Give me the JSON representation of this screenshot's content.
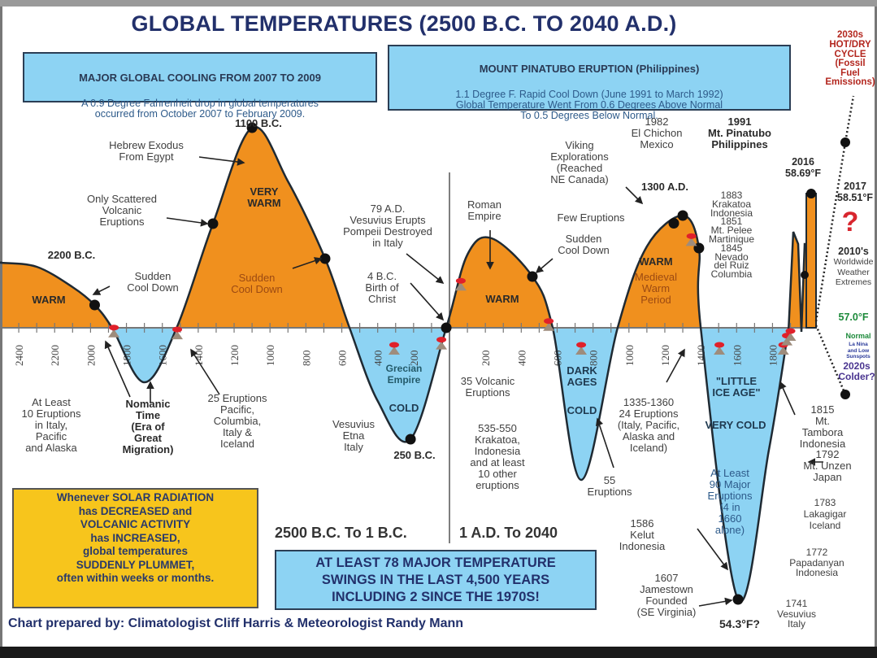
{
  "title": "GLOBAL TEMPERATURES (2500 B.C. TO 2040 A.D.)",
  "colors": {
    "warm": "#F0901E",
    "cold": "#8DD3F3",
    "title": "#22306B",
    "curve": "#1f2a33",
    "eruption": "#E0202A",
    "volcano": "#9E8C7C"
  },
  "cooling_box": {
    "heading": "MAJOR GLOBAL COOLING FROM 2007 TO 2009",
    "body": "A 0.9 Degree Fahrenheit drop in global temperatures\noccurred from October 2007 to February 2009."
  },
  "pinatubo_box": {
    "heading": "MOUNT PINATUBO ERUPTION (Philippines)",
    "body": "1.1 Degree F. Rapid Cool Down (June 1991 to March 1992)\nGlobal Temperature Went From 0.6 Degrees Above Normal\nTo 0.5 Degrees Below Normal."
  },
  "solar_box": "Whenever SOLAR RADIATION\nhas DECREASED and\nVOLCANIC ACTIVITY\nhas INCREASED,\nglobal temperatures\nSUDDENLY PLUMMET,\noften within weeks or months.",
  "swings_box": "AT LEAST 78 MAJOR TEMPERATURE\nSWINGS IN THE LAST 4,500 YEARS\nINCLUDING 2 SINCE THE 1970S!",
  "range_bc": "2500 B.C. To 1 B.C.",
  "range_ad": "1 A.D. To 2040",
  "footer": "Chart prepared by: Climatologist Cliff Harris & Meteorologist Randy Mann",
  "annotations": {
    "bc1100": "1100 B.C.",
    "exodus": "Hebrew Exodus\nFrom Egypt",
    "scattered": "Only Scattered\nVolcanic\nEruptions",
    "bc2200": "2200 B.C.",
    "cool1": "Sudden\nCool Down",
    "cool2": "Sudden\nCool Down",
    "very_warm": "VERY\nWARM",
    "warm1": "WARM",
    "vesuvius79": "79 A.D.\nVesuvius Erupts\nPompeii Destroyed\nin Italy",
    "christ": "4 B.C.\nBirth of\nChrist",
    "roman": "Roman\nEmpire",
    "warm2": "WARM",
    "viking": "Viking\nExplorations\n(Reached\nNE Canada)",
    "few": "Few Eruptions",
    "cool3": "Sudden\nCool Down",
    "ad1300": "1300 A.D.",
    "warm3": "WARM",
    "medieval": "Medieval\nWarm\nPeriod",
    "chichon": "1982\nEl Chichon\nMexico",
    "pinatubo": "1991\nMt. Pinatubo\nPhilippines",
    "modern_eruptions": "1883\nKrakatoa\nIndonesia\n1851\nMt. Pelee\nMartinique\n1845\nNevado\ndel Ruiz\nColumbia",
    "y2016": "2016\n58.69°F",
    "y2017": "2017\n58.51°F",
    "question": "?",
    "y2010s": "2010's",
    "extremes": "Worldwide\nWeather\nExtremes",
    "normal_temp": "57.0°F",
    "normal": "Normal",
    "lanina": "La Nina\nand Low\nSunspots",
    "y2020s": "2020s\nColder?",
    "y2030s": "2030s",
    "hotdry": "HOT/DRY\nCYCLE\n(Fossil Fuel\nEmissions)",
    "ten_eruptions": "At Least\n10 Eruptions\nin Italy,\nPacific\nand Alaska",
    "nomanic": "Nomanic\nTime\n(Era of\nGreat\nMigration)",
    "twentyfive": "25 Eruptions\nPacific,\nColumbia,\nItaly &\nIceland",
    "grecian": "Grecian\nEmpire",
    "cold1": "COLD",
    "etna": "Vesuvius\nEtna\nItaly",
    "bc250": "250 B.C.",
    "thirtyfive": "35 Volcanic\nEruptions",
    "krakatoa535": "535-550\nKrakatoa,\nIndonesia\nand at least\n10 other\neruptions",
    "dark": "DARK\nAGES",
    "cold2": "COLD",
    "fiftyfive": "55\nEruptions",
    "y1335": "1335-1360\n24 Eruptions\n(Italy, Pacific,\nAlaska and\nIceland)",
    "little_ice": "\"LITTLE\nICE AGE\"",
    "very_cold": "VERY COLD",
    "ninety": "At Least\n90 Major\nEruptions\n(4 in\n1660\nalone)",
    "tambora": "1815\nMt. Tambora\nIndonesia",
    "unzen": "1792\nMt. Unzen\nJapan",
    "laki": "1783\nLakagigar\nIceland",
    "papadanyan": "1772\nPapadanyan\nIndonesia",
    "vesuvius1741": "1741\nVesuvius\nItaly",
    "kelut": "1586\nKelut\nIndonesia",
    "jamestown": "1607\nJamestown\nFounded\n(SE Virginia)",
    "low_temp": "54.3°F?"
  },
  "chart_data": {
    "type": "area",
    "title": "GLOBAL TEMPERATURES (2500 B.C. TO 2040 A.D.)",
    "xlabel": "",
    "ylabel": "",
    "xlim": [
      -2500,
      2040
    ],
    "x_tick_labels_bc": [
      "2400",
      "2200",
      "2000",
      "1800",
      "1600",
      "1400",
      "1200",
      "1000",
      "800",
      "600",
      "400",
      "200"
    ],
    "x_tick_labels_ad": [
      "200",
      "400",
      "600",
      "800",
      "1000",
      "1200",
      "1400",
      "1600",
      "1800"
    ],
    "grid": false,
    "series": [
      {
        "x": [
          -2500,
          -2300,
          -2100,
          -1977,
          -1880,
          -1700,
          -1520,
          -1318,
          -1100,
          -900,
          -693,
          -557,
          -400,
          -217,
          -18,
          100,
          235,
          462,
          575,
          734,
          937,
          1100,
          1300,
          1390,
          1400,
          1608,
          1780,
          1890
        ],
        "y": [
          0.8,
          0.75,
          0.5,
          0.28,
          0,
          -0.67,
          0,
          1.28,
          2.46,
          1.8,
          0.85,
          0,
          -0.9,
          -1.37,
          0,
          0.9,
          1.1,
          0.63,
          0,
          -1.87,
          0,
          1.0,
          1.38,
          0.98,
          0,
          -3.34,
          -1.5,
          0
        ]
      }
    ],
    "highlighted_points": [
      -1977,
      -1318,
      -1100,
      -693,
      -217,
      -18,
      462,
      1250,
      1300,
      1390,
      1608
    ],
    "eruption_markers": [
      -1870,
      -1517,
      -308,
      -45,
      63,
      553,
      734,
      1348,
      1504,
      1860,
      1880,
      1900
    ]
  }
}
